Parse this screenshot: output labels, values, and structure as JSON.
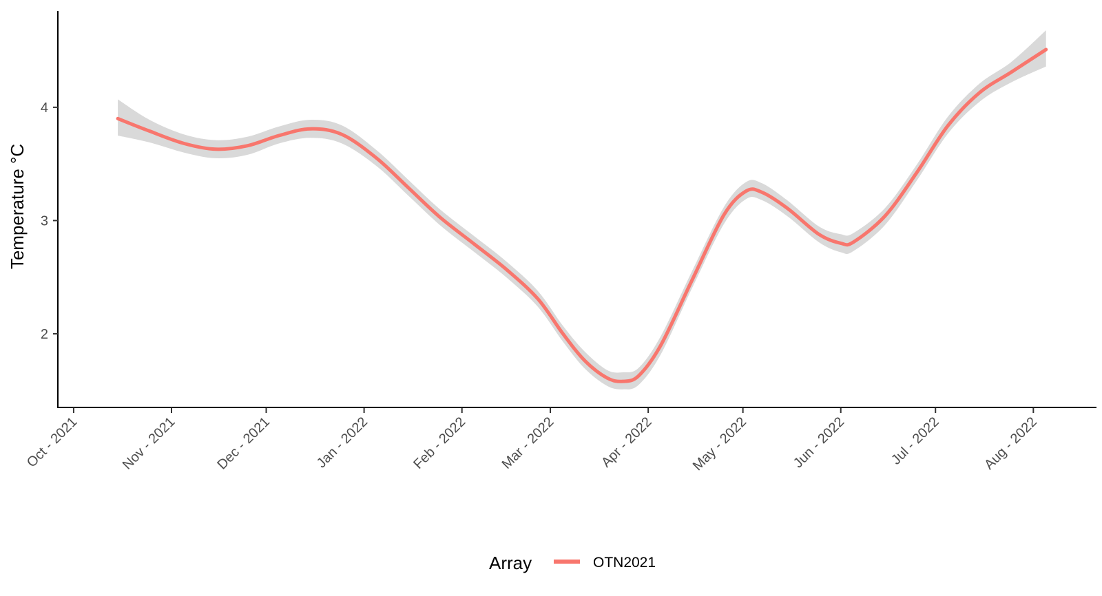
{
  "chart_data": {
    "type": "line",
    "title": "",
    "xlabel": "",
    "ylabel": "Temperature °C",
    "x_ticks": [
      "2021-10-01",
      "2021-11-01",
      "2021-12-01",
      "2022-01-01",
      "2022-02-01",
      "2022-03-01",
      "2022-04-01",
      "2022-05-01",
      "2022-06-01",
      "2022-07-01",
      "2022-08-01"
    ],
    "x_tick_labels": [
      "Oct - 2021",
      "Nov - 2021",
      "Dec - 2021",
      "Jan - 2022",
      "Feb - 2022",
      "Mar - 2022",
      "Apr - 2022",
      "May - 2022",
      "Jun - 2022",
      "Jul - 2022",
      "Aug - 2022"
    ],
    "y_ticks": [
      2,
      3,
      4
    ],
    "xlim": [
      "2021-09-26",
      "2022-08-21"
    ],
    "ylim": [
      1.35,
      4.85
    ],
    "grid": false,
    "legend": {
      "title": "Array",
      "position": "bottom"
    },
    "series": [
      {
        "name": "OTN2021",
        "color": "#F8766D",
        "band_color": "#D9D9D9",
        "points": [
          {
            "x": "2021-10-15",
            "y": 3.9,
            "lo": 3.75,
            "hi": 4.07
          },
          {
            "x": "2021-10-25",
            "y": 3.79,
            "lo": 3.69,
            "hi": 3.89
          },
          {
            "x": "2021-11-05",
            "y": 3.68,
            "lo": 3.6,
            "hi": 3.76
          },
          {
            "x": "2021-11-15",
            "y": 3.63,
            "lo": 3.55,
            "hi": 3.71
          },
          {
            "x": "2021-11-25",
            "y": 3.66,
            "lo": 3.58,
            "hi": 3.74
          },
          {
            "x": "2021-12-05",
            "y": 3.75,
            "lo": 3.68,
            "hi": 3.83
          },
          {
            "x": "2021-12-15",
            "y": 3.81,
            "lo": 3.73,
            "hi": 3.89
          },
          {
            "x": "2021-12-25",
            "y": 3.76,
            "lo": 3.68,
            "hi": 3.84
          },
          {
            "x": "2022-01-05",
            "y": 3.55,
            "lo": 3.48,
            "hi": 3.62
          },
          {
            "x": "2022-01-15",
            "y": 3.29,
            "lo": 3.22,
            "hi": 3.36
          },
          {
            "x": "2022-01-25",
            "y": 3.03,
            "lo": 2.96,
            "hi": 3.1
          },
          {
            "x": "2022-02-05",
            "y": 2.79,
            "lo": 2.72,
            "hi": 2.86
          },
          {
            "x": "2022-02-15",
            "y": 2.57,
            "lo": 2.5,
            "hi": 2.64
          },
          {
            "x": "2022-02-25",
            "y": 2.31,
            "lo": 2.24,
            "hi": 2.38
          },
          {
            "x": "2022-03-05",
            "y": 2.0,
            "lo": 1.93,
            "hi": 2.07
          },
          {
            "x": "2022-03-12",
            "y": 1.76,
            "lo": 1.69,
            "hi": 1.84
          },
          {
            "x": "2022-03-19",
            "y": 1.61,
            "lo": 1.54,
            "hi": 1.68
          },
          {
            "x": "2022-03-24",
            "y": 1.58,
            "lo": 1.51,
            "hi": 1.66
          },
          {
            "x": "2022-03-29",
            "y": 1.63,
            "lo": 1.55,
            "hi": 1.7
          },
          {
            "x": "2022-04-05",
            "y": 1.9,
            "lo": 1.82,
            "hi": 1.98
          },
          {
            "x": "2022-04-15",
            "y": 2.48,
            "lo": 2.41,
            "hi": 2.56
          },
          {
            "x": "2022-04-25",
            "y": 3.05,
            "lo": 2.97,
            "hi": 3.12
          },
          {
            "x": "2022-05-02",
            "y": 3.26,
            "lo": 3.19,
            "hi": 3.34
          },
          {
            "x": "2022-05-07",
            "y": 3.25,
            "lo": 3.18,
            "hi": 3.33
          },
          {
            "x": "2022-05-15",
            "y": 3.11,
            "lo": 3.04,
            "hi": 3.18
          },
          {
            "x": "2022-05-25",
            "y": 2.88,
            "lo": 2.81,
            "hi": 2.95
          },
          {
            "x": "2022-06-01",
            "y": 2.8,
            "lo": 2.72,
            "hi": 2.88
          },
          {
            "x": "2022-06-05",
            "y": 2.81,
            "lo": 2.73,
            "hi": 2.89
          },
          {
            "x": "2022-06-15",
            "y": 3.04,
            "lo": 2.96,
            "hi": 3.11
          },
          {
            "x": "2022-06-25",
            "y": 3.42,
            "lo": 3.35,
            "hi": 3.49
          },
          {
            "x": "2022-07-05",
            "y": 3.84,
            "lo": 3.77,
            "hi": 3.92
          },
          {
            "x": "2022-07-15",
            "y": 4.13,
            "lo": 4.05,
            "hi": 4.21
          },
          {
            "x": "2022-07-25",
            "y": 4.31,
            "lo": 4.22,
            "hi": 4.4
          },
          {
            "x": "2022-08-05",
            "y": 4.51,
            "lo": 4.36,
            "hi": 4.68
          }
        ]
      }
    ]
  }
}
